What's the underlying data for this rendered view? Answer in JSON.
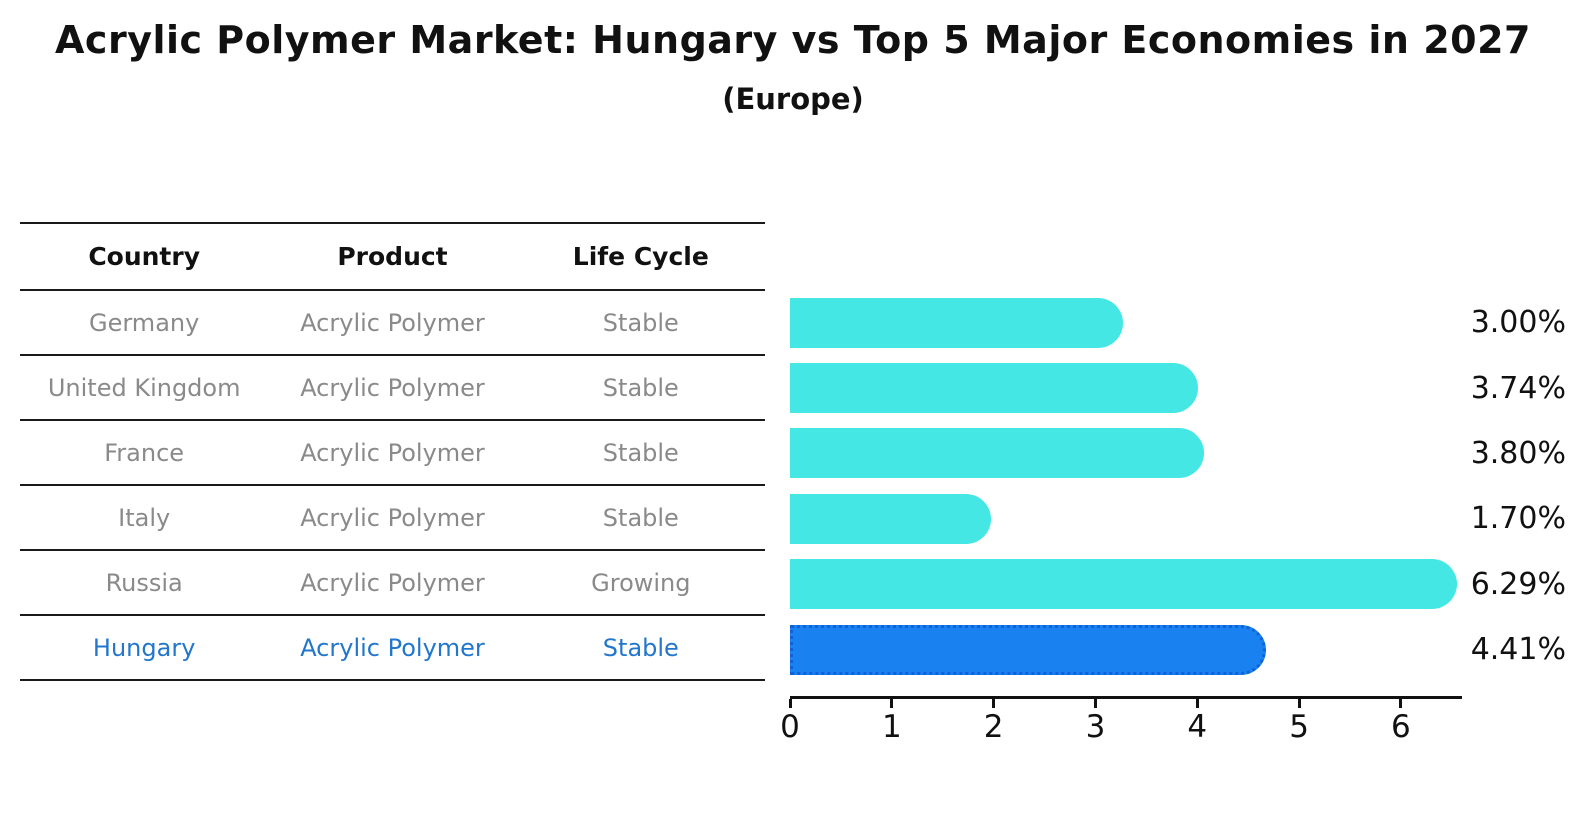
{
  "header": {
    "title": "Acrylic Polymer Market: Hungary vs Top 5 Major Economies in 2027",
    "subtitle": "(Europe)"
  },
  "table": {
    "headers": [
      "Country",
      "Product",
      "Life Cycle"
    ],
    "rows": [
      {
        "country": "Germany",
        "product": "Acrylic Polymer",
        "life_cycle": "Stable",
        "highlighted": false
      },
      {
        "country": "United Kingdom",
        "product": "Acrylic Polymer",
        "life_cycle": "Stable",
        "highlighted": false
      },
      {
        "country": "France",
        "product": "Acrylic Polymer",
        "life_cycle": "Stable",
        "highlighted": false
      },
      {
        "country": "Italy",
        "product": "Acrylic Polymer",
        "life_cycle": "Stable",
        "highlighted": false
      },
      {
        "country": "Russia",
        "product": "Acrylic Polymer",
        "life_cycle": "Growing",
        "highlighted": false
      },
      {
        "country": "Hungary",
        "product": "Acrylic Polymer",
        "life_cycle": "Stable",
        "highlighted": true
      }
    ]
  },
  "chart_data": {
    "type": "bar",
    "orientation": "horizontal",
    "title": "Acrylic Polymer Market: Hungary vs Top 5 Major Economies in 2027",
    "subtitle": "(Europe)",
    "categories": [
      "Germany",
      "United Kingdom",
      "France",
      "Italy",
      "Russia",
      "Hungary"
    ],
    "values": [
      3.0,
      3.74,
      3.8,
      1.7,
      6.29,
      4.41
    ],
    "labels": [
      "3.00%",
      "3.74%",
      "3.80%",
      "1.70%",
      "6.29%",
      "4.41%"
    ],
    "xlabel": "",
    "ylabel": "",
    "xlim": [
      0,
      6.6
    ],
    "xticks": [
      "0",
      "1",
      "2",
      "3",
      "4",
      "5",
      "6"
    ],
    "grid": false,
    "legend": "none",
    "bar_color": "#44e7e4",
    "highlight_index": 5,
    "highlight_color": "#1a82f0",
    "highlight_border_color": "#0f62d8",
    "highlight_text_color": "#2277cc"
  }
}
